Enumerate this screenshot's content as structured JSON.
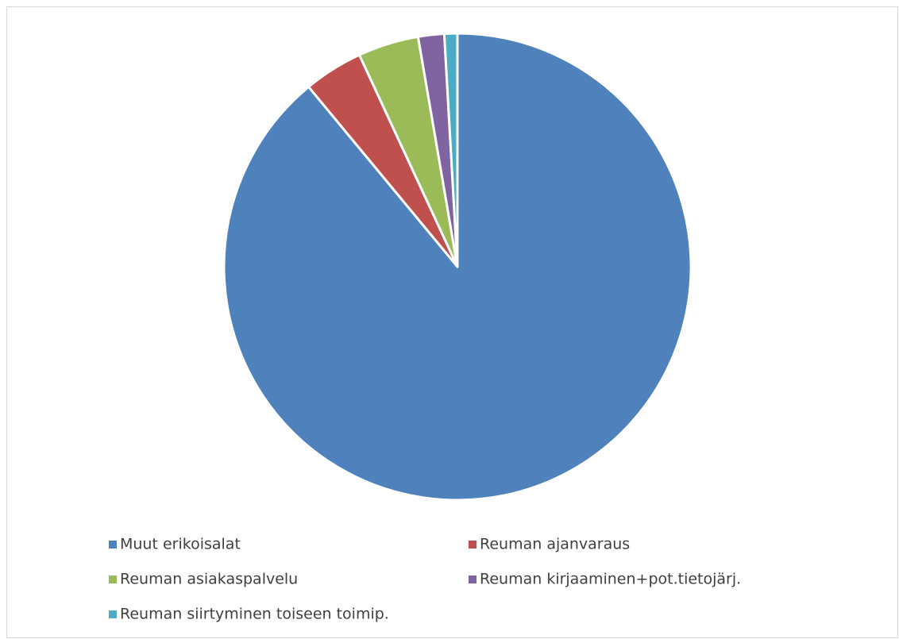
{
  "chart_data": {
    "type": "pie",
    "categories": [
      "Muut erikoisalat",
      "Reuman ajanvaraus",
      "Reuman asiakaspalvelu",
      "Reuman kirjaaminen+pot.tietojärj.",
      "Reuman siirtyminen toiseen toimip."
    ],
    "values": [
      89,
      4.1,
      4.2,
      1.8,
      0.9
    ],
    "colors": [
      "#4f81bd",
      "#c0504d",
      "#9bbb59",
      "#8064a2",
      "#4bacc6"
    ],
    "legend": "bottom"
  }
}
